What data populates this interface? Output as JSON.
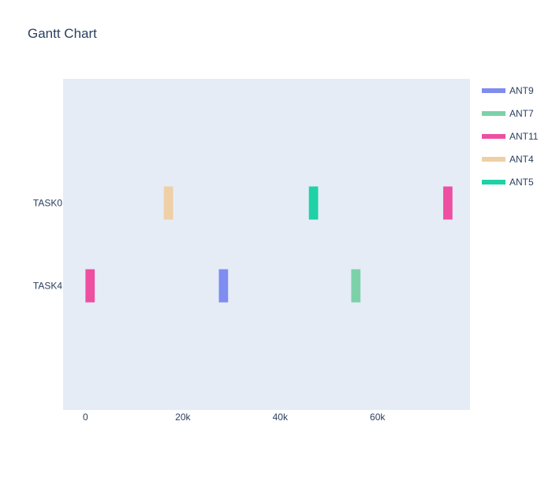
{
  "chart_data": {
    "type": "gantt",
    "title": "Gantt Chart",
    "xlabel": "",
    "ylabel": "",
    "categories": [
      "TASK0",
      "TASK4"
    ],
    "xlim": [
      -4600,
      79000
    ],
    "x_ticks": [
      0,
      20000,
      40000,
      60000
    ],
    "x_tick_labels": [
      "0",
      "20k",
      "40k",
      "60k"
    ],
    "grid": false,
    "legend": {
      "position": "right"
    },
    "series": [
      {
        "name": "ANT9",
        "color": "#7f8cf0",
        "tasks": [
          {
            "task": "TASK4",
            "start": 27400,
            "end": 29300
          }
        ]
      },
      {
        "name": "ANT7",
        "color": "#7dd1a8",
        "tasks": [
          {
            "task": "TASK4",
            "start": 54600,
            "end": 56500
          }
        ]
      },
      {
        "name": "ANT11",
        "color": "#ee4fa1",
        "tasks": [
          {
            "task": "TASK0",
            "start": 73500,
            "end": 75400
          },
          {
            "task": "TASK4",
            "start": 0,
            "end": 1900
          }
        ]
      },
      {
        "name": "ANT4",
        "color": "#efcfa5",
        "tasks": [
          {
            "task": "TASK0",
            "start": 16100,
            "end": 18000
          }
        ]
      },
      {
        "name": "ANT5",
        "color": "#1ed1a6",
        "tasks": [
          {
            "task": "TASK0",
            "start": 45900,
            "end": 47800
          }
        ]
      }
    ]
  }
}
